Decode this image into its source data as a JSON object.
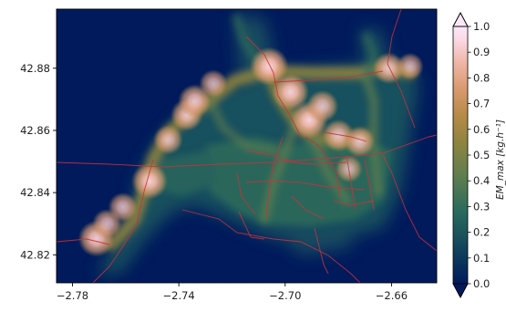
{
  "chart_data": {
    "type": "heatmap",
    "title": "",
    "xlabel": "",
    "ylabel": "",
    "xlim": [
      -2.786,
      -2.643
    ],
    "ylim": [
      42.811,
      42.899
    ],
    "x_ticks": [
      -2.78,
      -2.74,
      -2.7,
      -2.66
    ],
    "x_tick_labels": [
      "−2.78",
      "−2.74",
      "−2.70",
      "−2.66"
    ],
    "y_ticks": [
      42.82,
      42.84,
      42.86,
      42.88
    ],
    "y_tick_labels": [
      "42.82",
      "42.84",
      "42.86",
      "42.88"
    ],
    "grid": false,
    "colormap": [
      "#001a5c",
      "#0f3f5c",
      "#2a6a5d",
      "#5f7e4f",
      "#8f8440",
      "#b98b48",
      "#d99a70",
      "#f0b6a6",
      "#fbd9e6",
      "#fbe8f7"
    ],
    "colorbar": {
      "label": "EM_max [kg.h⁻¹]",
      "range": [
        0.0,
        1.0
      ],
      "ticks": [
        0.0,
        0.1,
        0.2,
        0.3,
        0.4,
        0.5,
        0.6,
        0.7,
        0.8,
        0.9,
        1.0
      ],
      "tick_labels": [
        "0.0",
        "0.1",
        "0.2",
        "0.3",
        "0.4",
        "0.5",
        "0.6",
        "0.7",
        "0.8",
        "0.9",
        "1.0"
      ],
      "extend": "both"
    },
    "hotspots": [
      {
        "x": -2.771,
        "y": 42.8252,
        "value": 0.86
      },
      {
        "x": -2.767,
        "y": 42.83,
        "value": 0.6
      },
      {
        "x": -2.761,
        "y": 42.8353,
        "value": 0.6
      },
      {
        "x": -2.751,
        "y": 42.8437,
        "value": 0.86
      },
      {
        "x": -2.744,
        "y": 42.857,
        "value": 0.6
      },
      {
        "x": -2.737,
        "y": 42.865,
        "value": 0.7
      },
      {
        "x": -2.734,
        "y": 42.8695,
        "value": 0.74
      },
      {
        "x": -2.727,
        "y": 42.875,
        "value": 0.55
      },
      {
        "x": -2.706,
        "y": 42.8806,
        "value": 0.95
      },
      {
        "x": -2.698,
        "y": 42.8723,
        "value": 0.9
      },
      {
        "x": -2.691,
        "y": 42.8633,
        "value": 0.92
      },
      {
        "x": -2.686,
        "y": 42.8678,
        "value": 0.7
      },
      {
        "x": -2.68,
        "y": 42.8584,
        "value": 0.7
      },
      {
        "x": -2.672,
        "y": 42.8564,
        "value": 0.65
      },
      {
        "x": -2.661,
        "y": 42.88,
        "value": 0.68
      },
      {
        "x": -2.653,
        "y": 42.8806,
        "value": 0.5
      },
      {
        "x": -2.676,
        "y": 42.8476,
        "value": 0.5
      }
    ]
  }
}
